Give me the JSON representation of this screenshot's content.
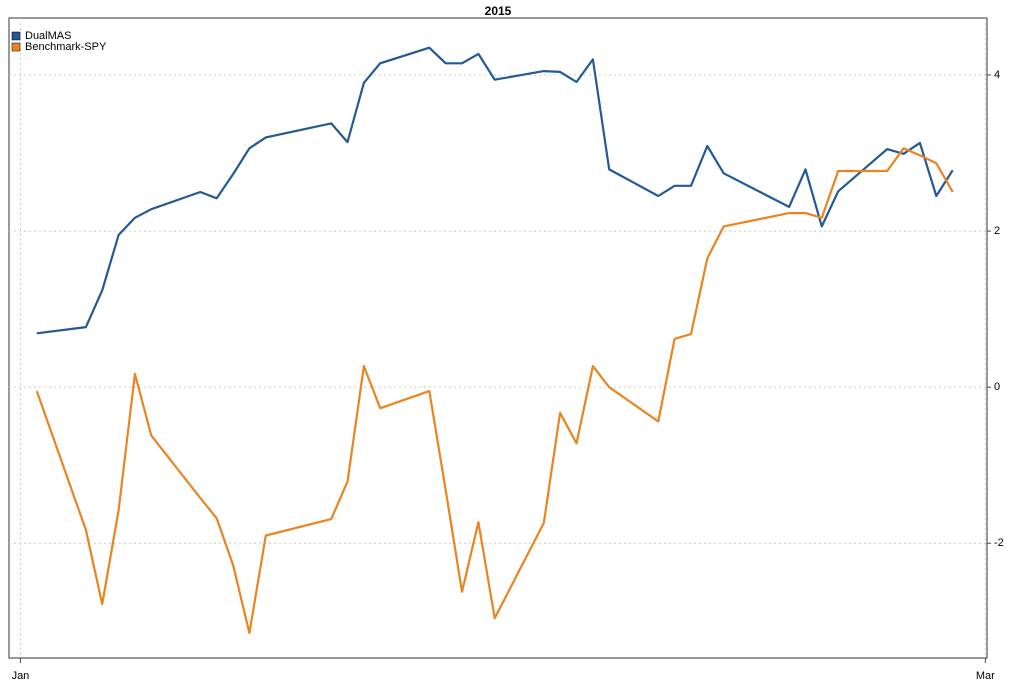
{
  "chart_data": {
    "type": "line",
    "title": "2015",
    "x": [
      1,
      4,
      5,
      6,
      7,
      8,
      11,
      12,
      13,
      14,
      15,
      19,
      20,
      21,
      22,
      25,
      26,
      27,
      28,
      29,
      32,
      33,
      34,
      35,
      36,
      39,
      40,
      41,
      42,
      43,
      47,
      48,
      49,
      50,
      53,
      54,
      55,
      56,
      57
    ],
    "xlim": [
      -0.7,
      59.1
    ],
    "xticks": [
      {
        "value": 0,
        "label": "Jan"
      },
      {
        "value": 59,
        "label": "Mar"
      }
    ],
    "ylim": [
      -3.47,
      4.73
    ],
    "yticks": [
      -2,
      0,
      2,
      4
    ],
    "grid": true,
    "legend": "top-left",
    "series": [
      {
        "name": "DualMAS",
        "color": "#235a93",
        "values": [
          0.69,
          0.77,
          1.24,
          1.95,
          2.17,
          2.28,
          2.5,
          2.42,
          2.73,
          3.06,
          3.2,
          3.38,
          3.14,
          3.9,
          4.15,
          4.35,
          4.15,
          4.15,
          4.27,
          3.94,
          4.05,
          4.04,
          3.91,
          4.2,
          2.79,
          2.45,
          2.58,
          2.58,
          3.09,
          2.74,
          2.31,
          2.79,
          2.06,
          2.51,
          3.05,
          2.99,
          3.13,
          2.45,
          2.78
        ]
      },
      {
        "name": "Benchmark-SPY",
        "color": "#ea8420",
        "values": [
          -0.05,
          -1.83,
          -2.78,
          -1.58,
          0.17,
          -0.62,
          -1.42,
          -1.68,
          -2.28,
          -3.15,
          -1.9,
          -1.69,
          -1.21,
          0.27,
          -0.27,
          -0.05,
          -1.32,
          -2.62,
          -1.73,
          -2.96,
          -1.74,
          -0.33,
          -0.72,
          0.27,
          0,
          -0.44,
          0.62,
          0.68,
          1.65,
          2.06,
          2.23,
          2.23,
          2.17,
          2.77,
          2.77,
          3.06,
          2.97,
          2.87,
          2.5
        ]
      }
    ]
  }
}
